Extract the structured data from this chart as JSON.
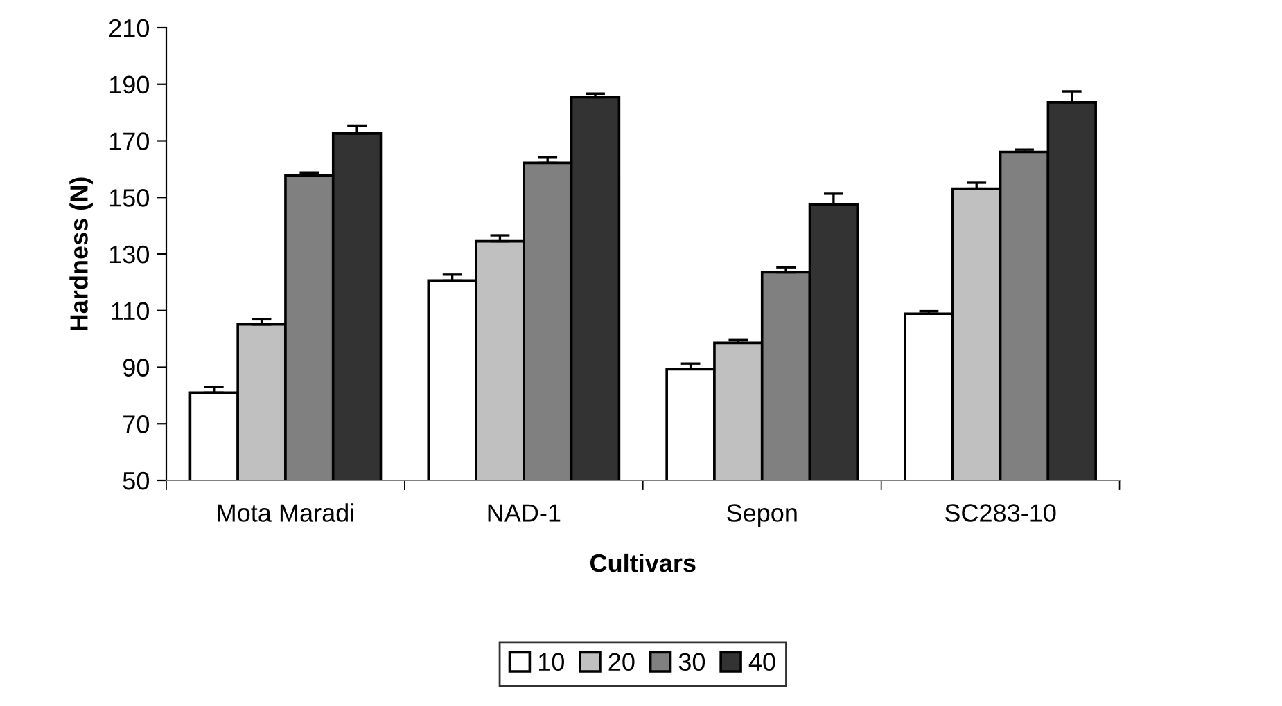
{
  "chart_data": {
    "type": "bar",
    "xlabel": "Cultivars",
    "ylabel": "Hardness (N)",
    "categories": [
      "Mota Maradi",
      "NAD-1",
      "Sepon",
      "SC283-10"
    ],
    "series": [
      {
        "name": "10",
        "color": "#ffffff",
        "values": [
          81,
          120.6,
          89.3,
          108.9
        ],
        "errors": [
          [
            81,
            83
          ],
          [
            120.6,
            122.7
          ],
          [
            89.3,
            91.3
          ],
          [
            108.9,
            109.8
          ]
        ]
      },
      {
        "name": "20",
        "color": "#c0c0c0",
        "values": [
          105.1,
          134.5,
          98.6,
          153.1
        ],
        "errors": [
          [
            105.1,
            106.9
          ],
          [
            134.5,
            136.6
          ],
          [
            98.6,
            99.6
          ],
          [
            153.1,
            155.2
          ]
        ]
      },
      {
        "name": "30",
        "color": "#808080",
        "values": [
          157.8,
          162.2,
          123.5,
          166.1
        ],
        "errors": [
          [
            157.8,
            158.8
          ],
          [
            162.2,
            164.3
          ],
          [
            123.5,
            125.3
          ],
          [
            166.1,
            166.9
          ]
        ]
      },
      {
        "name": "40",
        "color": "#333333",
        "values": [
          172.6,
          185.4,
          147.5,
          183.6
        ],
        "errors": [
          [
            172.6,
            175.4
          ],
          [
            185.4,
            186.7
          ],
          [
            147.5,
            151.3
          ],
          [
            183.6,
            187.5
          ]
        ]
      }
    ],
    "ylim": [
      50,
      210
    ],
    "yticks": [
      50,
      70,
      90,
      110,
      130,
      150,
      170,
      190,
      210
    ],
    "grid": false,
    "legend": "bottom"
  }
}
